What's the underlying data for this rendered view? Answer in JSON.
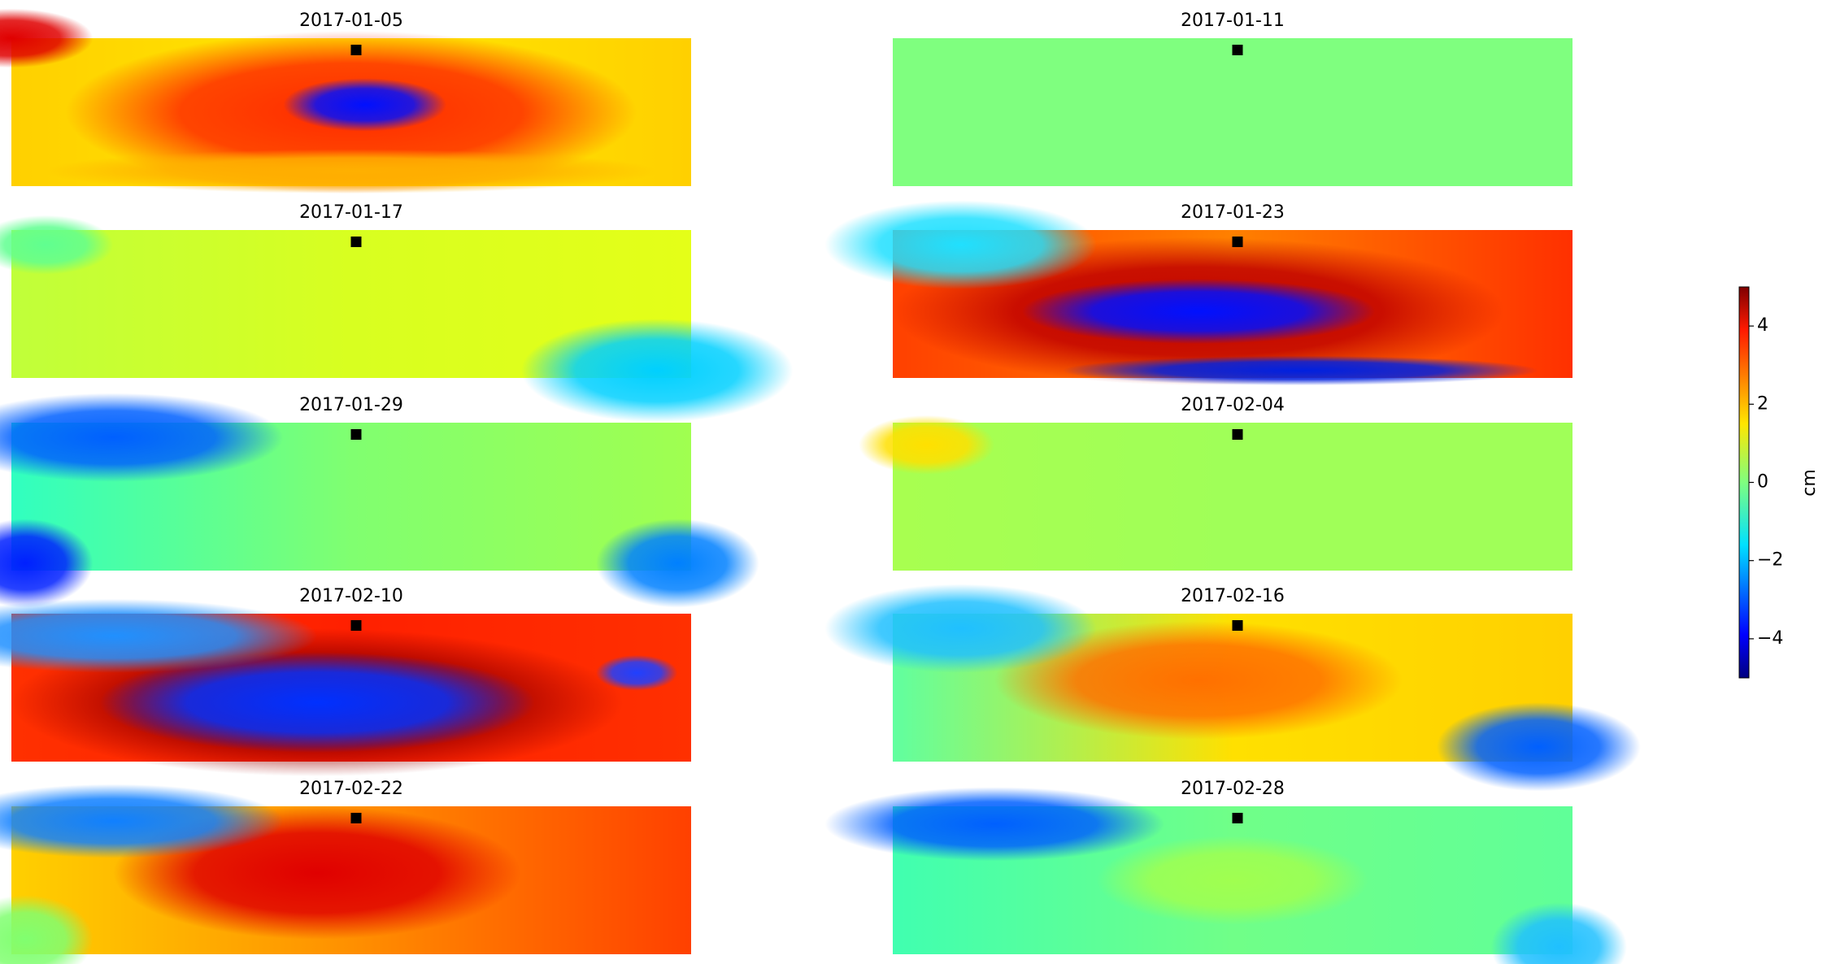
{
  "chart_data": {
    "type": "image-grid",
    "titles": [
      "2017-01-05",
      "2017-01-11",
      "2017-01-17",
      "2017-01-23",
      "2017-01-29",
      "2017-02-04",
      "2017-02-10",
      "2017-02-16",
      "2017-02-22",
      "2017-02-28"
    ],
    "marker_color": "#000000",
    "colorbar": {
      "label": "cm",
      "colormap": "jet",
      "lim": [
        -5,
        5
      ],
      "ticks": [
        {
          "value": -4,
          "label": "−4"
        },
        {
          "value": -2,
          "label": "−2"
        },
        0,
        2,
        4
      ]
    }
  }
}
